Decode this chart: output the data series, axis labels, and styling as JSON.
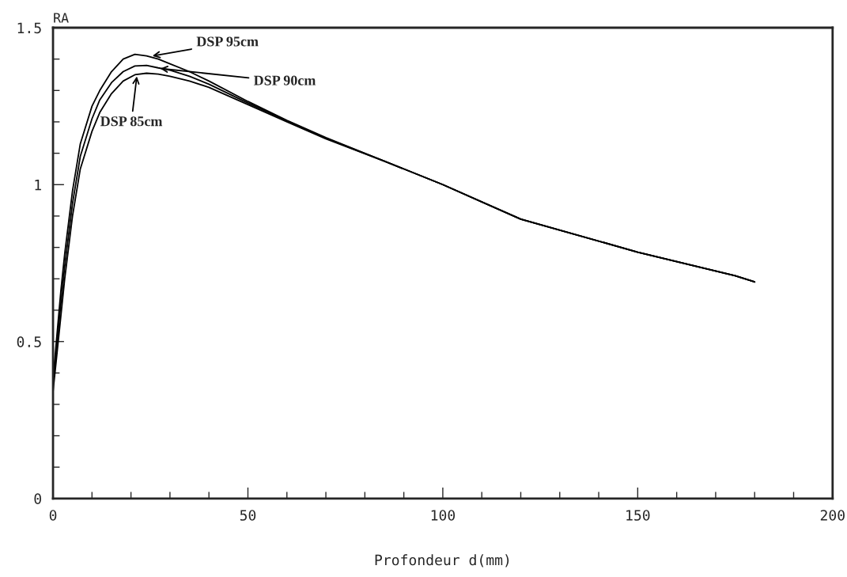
{
  "chart_data": {
    "type": "line",
    "xlabel": "Profondeur d(mm)",
    "ylabel": "RA",
    "x": [
      0,
      1,
      2,
      3,
      5,
      7,
      10,
      12,
      15,
      18,
      21,
      24,
      27,
      30,
      35,
      40,
      50,
      60,
      70,
      85,
      100,
      120,
      150,
      175,
      180
    ],
    "series": [
      {
        "color": "#000000",
        "values": [
          0.38,
          0.52,
          0.66,
          0.78,
          0.98,
          1.13,
          1.25,
          1.3,
          1.36,
          1.4,
          1.415,
          1.41,
          1.4,
          1.385,
          1.36,
          1.33,
          1.265,
          1.205,
          1.15,
          1.075,
          1.0,
          0.89,
          0.785,
          0.71,
          0.69
        ]
      },
      {
        "color": "#000000",
        "values": [
          0.36,
          0.49,
          0.62,
          0.74,
          0.94,
          1.09,
          1.21,
          1.27,
          1.325,
          1.36,
          1.378,
          1.38,
          1.372,
          1.365,
          1.345,
          1.32,
          1.26,
          1.203,
          1.148,
          1.075,
          1.0,
          0.89,
          0.785,
          0.71,
          0.69
        ]
      },
      {
        "color": "#000000",
        "values": [
          0.34,
          0.46,
          0.58,
          0.7,
          0.9,
          1.05,
          1.17,
          1.23,
          1.29,
          1.33,
          1.35,
          1.355,
          1.352,
          1.345,
          1.33,
          1.31,
          1.255,
          1.2,
          1.146,
          1.075,
          1.0,
          0.89,
          0.785,
          0.71,
          0.69
        ]
      }
    ],
    "annotations": [
      {
        "text": "DSP 95cm",
        "x": 25.5,
        "y": 1.41
      },
      {
        "text": "DSP 90cm",
        "x": 27.5,
        "y": 1.37
      },
      {
        "text": "DSP 85cm",
        "x": 21.5,
        "y": 1.345
      }
    ],
    "xlim": [
      0,
      200
    ],
    "ylim": [
      0,
      1.5
    ],
    "xticks": [
      0,
      {
        "value": 10,
        "label": null
      },
      {
        "value": 20,
        "label": null
      },
      {
        "value": 30,
        "label": null
      },
      {
        "value": 40,
        "label": null
      },
      50,
      {
        "value": 60,
        "label": null
      },
      {
        "value": 70,
        "label": null
      },
      {
        "value": 80,
        "label": null
      },
      {
        "value": 90,
        "label": null
      },
      100,
      {
        "value": 110,
        "label": null
      },
      {
        "value": 120,
        "label": null
      },
      {
        "value": 130,
        "label": null
      },
      {
        "value": 140,
        "label": null
      },
      150,
      {
        "value": 160,
        "label": null
      },
      {
        "value": 170,
        "label": null
      },
      {
        "value": 180,
        "label": null
      },
      {
        "value": 190,
        "label": null
      },
      200
    ],
    "yticks": [
      0,
      {
        "value": 0.1,
        "label": null
      },
      {
        "value": 0.2,
        "label": null
      },
      {
        "value": 0.3,
        "label": null
      },
      {
        "value": 0.4,
        "label": null
      },
      0.5,
      {
        "value": 0.6,
        "label": null
      },
      {
        "value": 0.7,
        "label": null
      },
      {
        "value": 0.8,
        "label": null
      },
      {
        "value": 0.9,
        "label": null
      },
      1,
      {
        "value": 1.1,
        "label": null
      },
      {
        "value": 1.2,
        "label": null
      },
      {
        "value": 1.3,
        "label": null
      },
      {
        "value": 1.4,
        "label": null
      },
      1.5
    ],
    "grid": false,
    "legend": false,
    "marker": "none",
    "line_style": "solid"
  }
}
